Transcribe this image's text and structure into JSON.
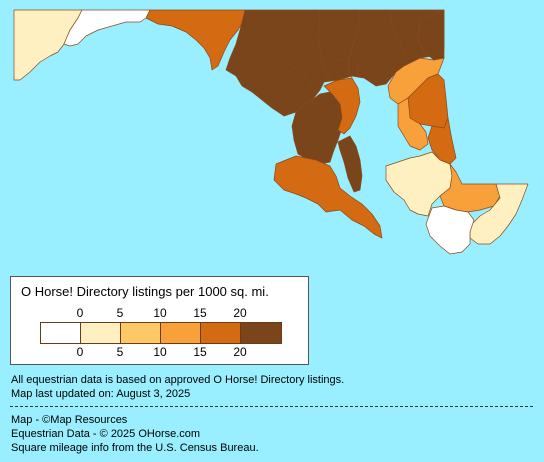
{
  "legend": {
    "title": "O Horse! Directory listings per 1000 sq. mi.",
    "ticks": [
      "0",
      "5",
      "10",
      "15",
      "20"
    ],
    "colors": [
      "#ffffff",
      "#fff0c2",
      "#fdc966",
      "#f8a13a",
      "#d46a12",
      "#7a451a"
    ]
  },
  "notes": {
    "line1": "All equestrian data is based on approved O Horse! Directory listings.",
    "line2": "Map last updated on: August 3, 2025"
  },
  "credits": {
    "map": "Map - ©Map Resources",
    "equestrian": "Equestrian Data - © 2025 OHorse.com",
    "square": "Square mileage info from the U.S. Census Bureau."
  },
  "colors": {
    "water": "#99eeff",
    "border": "#8a4a1a",
    "cat0": "#ffffff",
    "cat1": "#fff0c2",
    "cat2": "#fdc966",
    "cat3": "#f8a13a",
    "cat4": "#d46a12",
    "cat5": "#7a451a"
  }
}
